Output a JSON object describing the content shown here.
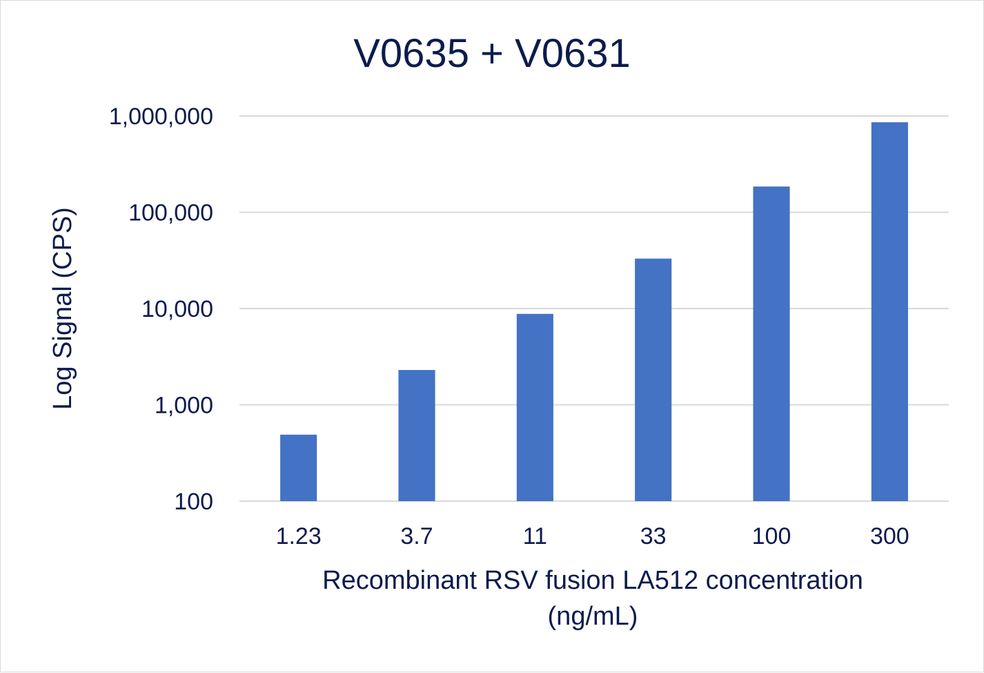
{
  "chart_data": {
    "type": "bar",
    "title": "V0635 + V0631",
    "xlabel_lines": [
      "Recombinant RSV fusion LA512 concentration",
      "(ng/mL)"
    ],
    "ylabel": "Log Signal (CPS)",
    "yscale": "log",
    "ylim": [
      100,
      1000000
    ],
    "yticks": [
      100,
      1000,
      10000,
      100000,
      1000000
    ],
    "ytick_labels": [
      "100",
      "1,000",
      "10,000",
      "100,000",
      "1,000,000"
    ],
    "categories": [
      "1.23",
      "3.7",
      "11",
      "33",
      "100",
      "300"
    ],
    "values": [
      490,
      2300,
      8800,
      33000,
      185000,
      860000
    ],
    "grid": true,
    "legend": "none",
    "colors": {
      "bar": "#4472c4",
      "text": "#0d1b4d",
      "grid": "#d9d9d9"
    }
  }
}
